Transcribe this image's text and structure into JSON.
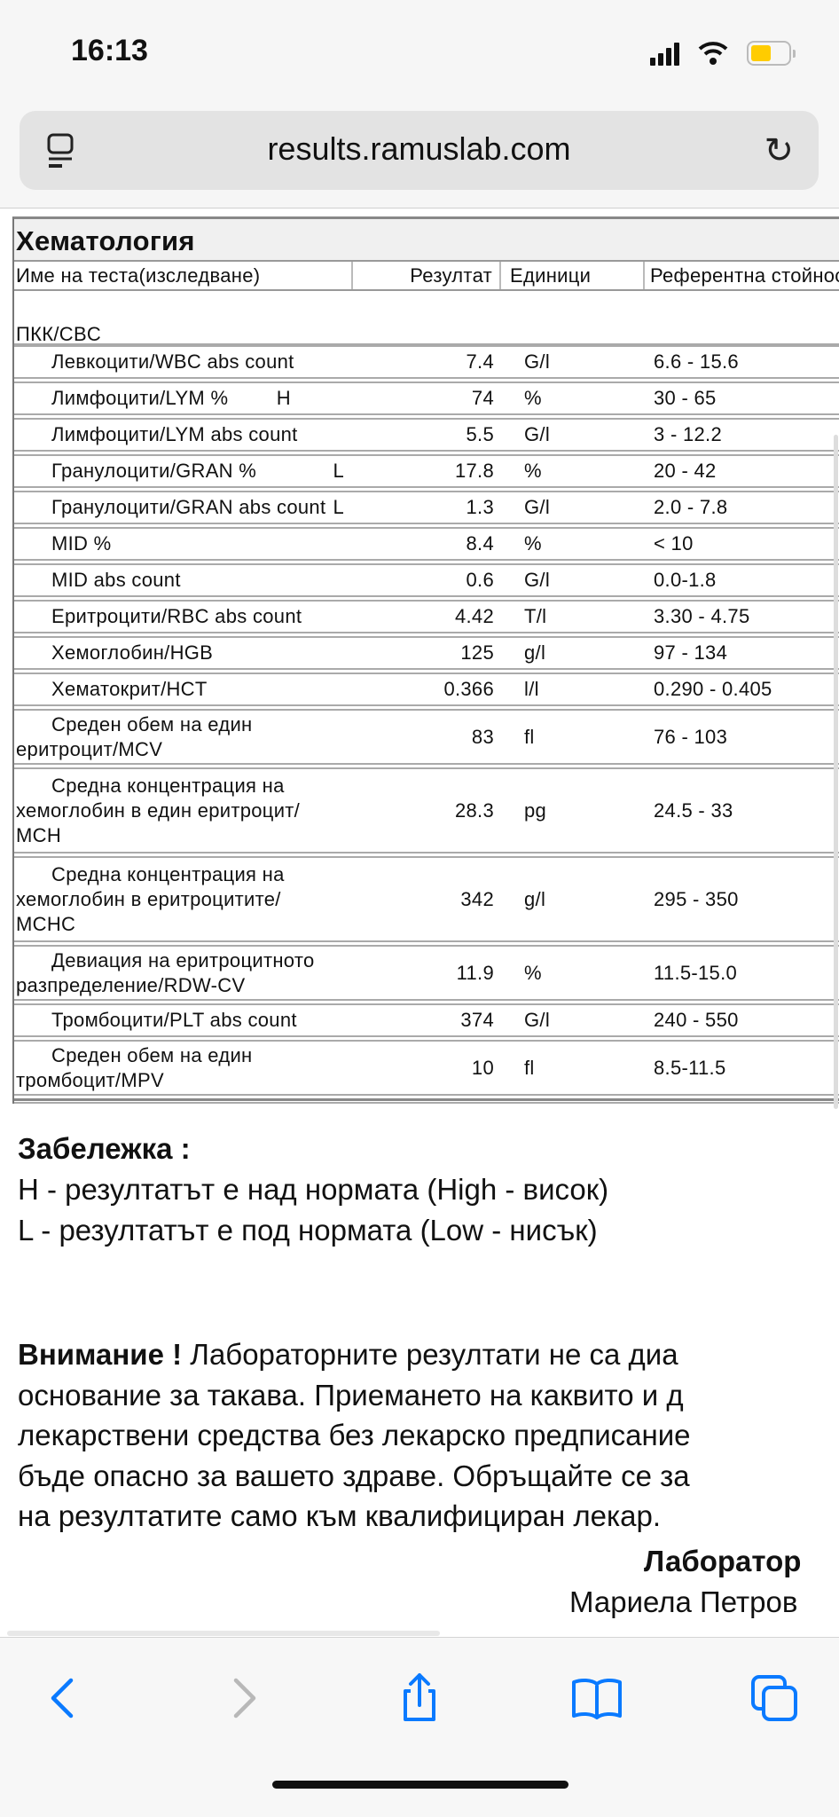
{
  "status_bar": {
    "time": "16:13",
    "battery_color": "#ffcc00"
  },
  "browser": {
    "url": "results.ramuslab.com",
    "accent": "#0a7aff"
  },
  "report": {
    "section_title": "Хематология",
    "columns": [
      "Име на теста(изследване)",
      "Резултат",
      "Единици",
      "Референтна стойнос"
    ],
    "group": "ПКК/CBC",
    "rows": [
      {
        "name": [
          "Левкоцити/WBC abs count"
        ],
        "flag": "",
        "result": "7.4",
        "unit": "G/l",
        "ref": "6.6 - 15.6"
      },
      {
        "name": [
          "Лимфоцити/LYM %"
        ],
        "flag": "H",
        "result": "74",
        "unit": "%",
        "ref": "30 - 65"
      },
      {
        "name": [
          "Лимфоцити/LYM abs count"
        ],
        "flag": "",
        "result": "5.5",
        "unit": "G/l",
        "ref": "3 - 12.2"
      },
      {
        "name": [
          "Гранулоцити/GRAN %"
        ],
        "flag": "L",
        "result": "17.8",
        "unit": "%",
        "ref": "20 - 42"
      },
      {
        "name": [
          "Гранулоцити/GRAN abs count"
        ],
        "flag": "L",
        "result": "1.3",
        "unit": "G/l",
        "ref": "2.0 - 7.8"
      },
      {
        "name": [
          "MID %"
        ],
        "flag": "",
        "result": "8.4",
        "unit": "%",
        "ref": "< 10"
      },
      {
        "name": [
          "MID abs count"
        ],
        "flag": "",
        "result": "0.6",
        "unit": "G/l",
        "ref": "0.0-1.8"
      },
      {
        "name": [
          "Еритроцити/RBC abs count"
        ],
        "flag": "",
        "result": "4.42",
        "unit": "T/l",
        "ref": "3.30 - 4.75"
      },
      {
        "name": [
          "Хемоглобин/HGB"
        ],
        "flag": "",
        "result": "125",
        "unit": "g/l",
        "ref": "97 - 134"
      },
      {
        "name": [
          "Хематокрит/HCT"
        ],
        "flag": "",
        "result": "0.366",
        "unit": "l/l",
        "ref": "0.290 - 0.405"
      },
      {
        "name": [
          "Среден обем на един",
          "еритроцит/MCV"
        ],
        "flag": "",
        "result": "83",
        "unit": "fl",
        "ref": "76 - 103"
      },
      {
        "name": [
          "Средна концентрация на",
          "хемоглобин в един еритроцит/",
          "MCH"
        ],
        "flag": "",
        "result": "28.3",
        "unit": "pg",
        "ref": "24.5 - 33"
      },
      {
        "name": [
          "Средна концентрация на",
          "хемоглобин в еритроцитите/",
          "MCHC"
        ],
        "flag": "",
        "result": "342",
        "unit": "g/l",
        "ref": "295 - 350"
      },
      {
        "name": [
          "Девиация на еритроцитното",
          "разпределение/RDW-CV"
        ],
        "flag": "",
        "result": "11.9",
        "unit": "%",
        "ref": "11.5-15.0"
      },
      {
        "name": [
          "Тромбоцити/PLT abs count"
        ],
        "flag": "",
        "result": "374",
        "unit": "G/l",
        "ref": "240 - 550"
      },
      {
        "name": [
          "Среден обем на един",
          "тромбоцит/MPV"
        ],
        "flag": "",
        "result": "10",
        "unit": "fl",
        "ref": "8.5-11.5"
      }
    ]
  },
  "legend": {
    "title": "Забележка :",
    "h": "H - резултатът е над нормата (High - висок)",
    "l": "L - резултатът е под нормата (Low - нисък)"
  },
  "warning": {
    "label": "Внимание !",
    "lines": [
      "Лабораторните резултати не са диа",
      "основание за такава. Приемането на каквито и д",
      "лекарствени средства без лекарско предписание",
      "бъде опасно за вашето здраве. Обръщайте се за",
      "на резултатите само към квалифициран лекар."
    ]
  },
  "signature": {
    "title": "Лаборатор",
    "name": "Мариела Петров"
  }
}
